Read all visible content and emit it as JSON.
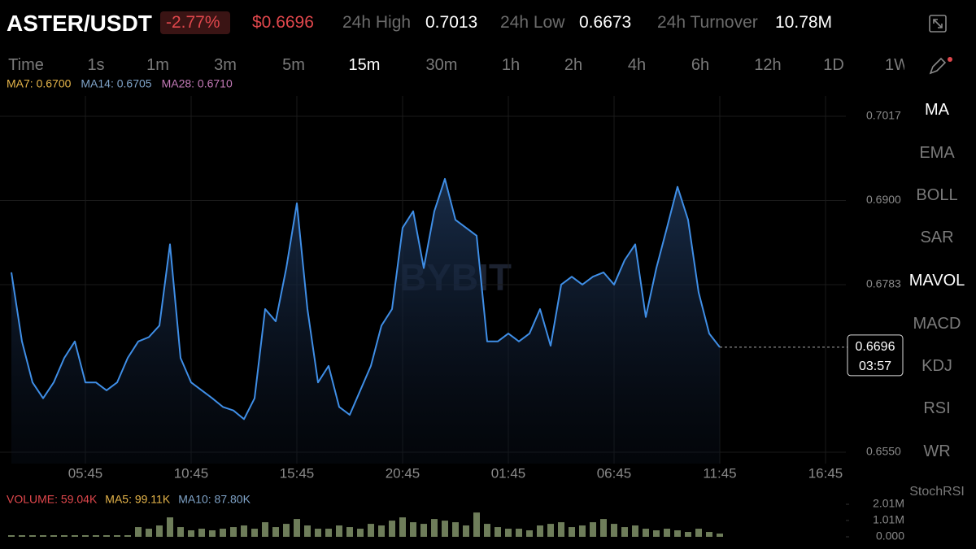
{
  "ui": {
    "symbol": "ASTER/USDT",
    "change": "-2.77%",
    "price": "$0.6696",
    "stats": [
      {
        "label": "24h High",
        "value": "0.7013"
      },
      {
        "label": "24h Low",
        "value": "0.6673"
      },
      {
        "label": "24h Turnover",
        "value": "10.78M"
      }
    ],
    "intervals": [
      "Time",
      "1s",
      "1m",
      "3m",
      "5m",
      "15m",
      "30m",
      "1h",
      "2h",
      "4h",
      "6h",
      "12h",
      "1D",
      "1W"
    ],
    "indicators": [
      "MA",
      "EMA",
      "BOLL",
      "SAR",
      "MAVOL",
      "MACD",
      "KDJ",
      "RSI",
      "WR",
      "StochRSI"
    ],
    "watermark": "BYBIT",
    "countdown": "03:57"
  },
  "chart_data": [
    {
      "type": "line",
      "indicator_labels": [
        {
          "text": "MA7: 0.6700",
          "color": "#e6b54a"
        },
        {
          "text": "MA14: 0.6705",
          "color": "#7fa3c8"
        },
        {
          "text": "MA28: 0.6710",
          "color": "#c47ab8"
        }
      ],
      "categories": [
        null,
        null,
        null,
        null,
        null,
        null,
        null,
        "05:45",
        null,
        null,
        null,
        null,
        null,
        null,
        null,
        null,
        null,
        "10:45",
        null,
        null,
        null,
        null,
        null,
        null,
        null,
        null,
        null,
        "15:45",
        null,
        null,
        null,
        null,
        null,
        null,
        null,
        null,
        null,
        "20:45",
        null,
        null,
        null,
        null,
        null,
        null,
        null,
        null,
        null,
        "01:45",
        null,
        null,
        null,
        null,
        null,
        null,
        null,
        null,
        null,
        "06:45",
        null,
        null,
        null,
        null,
        null,
        null,
        null,
        null,
        null,
        "11:45",
        null,
        null,
        null,
        null,
        null,
        null,
        null,
        null,
        null,
        "16:45",
        null,
        null,
        null
      ],
      "series": [
        {
          "color": "#3f8ee6",
          "values": [
            0.68,
            0.6704,
            0.6647,
            0.6625,
            0.6647,
            0.6681,
            0.6704,
            0.6647,
            0.6647,
            0.6636,
            0.6647,
            0.6681,
            0.6704,
            0.671,
            0.6726,
            0.6839,
            0.6681,
            0.6647,
            0.6636,
            0.6625,
            0.6613,
            0.6608,
            0.6596,
            0.6625,
            0.6749,
            0.6732,
            0.6806,
            0.6896,
            0.6749,
            0.6647,
            0.667,
            0.6613,
            0.6602,
            0.6636,
            0.667,
            0.6726,
            0.6749,
            0.6862,
            0.6885,
            0.6806,
            0.6885,
            0.693,
            0.6873,
            0.6862,
            0.6851,
            0.6704,
            0.6704,
            0.6715,
            0.6704,
            0.6715,
            0.6749,
            0.6698,
            0.6783,
            0.6794,
            0.6783,
            0.6794,
            0.68,
            0.6783,
            0.6817,
            0.6839,
            0.6738,
            0.6806,
            0.6862,
            0.6919,
            0.6873,
            0.6772,
            0.6715,
            0.6696,
            null,
            null,
            null,
            null,
            null,
            null,
            null,
            null,
            null,
            null,
            null,
            null,
            null
          ]
        }
      ],
      "ylim": [
        0.655,
        0.7017
      ],
      "yticks": [
        {
          "value": 0.7017,
          "label": "0.7017"
        },
        {
          "value": 0.69,
          "label": "0.6900"
        },
        {
          "value": 0.6783,
          "label": "0.6783"
        },
        {
          "value": 0.655,
          "label": "0.6550"
        }
      ],
      "grid": true
    },
    {
      "type": "bar",
      "indicator_labels": [
        {
          "text": "VOLUME: 59.04K",
          "color": "#e0474c"
        },
        {
          "text": "MA5: 99.11K",
          "color": "#e6b54a"
        },
        {
          "text": "MA10: 87.80K",
          "color": "#7fa3c8"
        }
      ],
      "color": "#6e7d5a",
      "values": [
        100000,
        100000,
        100000,
        100000,
        100000,
        100000,
        100000,
        100000,
        100000,
        100000,
        100000,
        100000,
        600000,
        500000,
        700000,
        1200000,
        600000,
        400000,
        500000,
        400000,
        500000,
        600000,
        700000,
        500000,
        900000,
        600000,
        800000,
        1100000,
        700000,
        500000,
        500000,
        700000,
        600000,
        500000,
        800000,
        700000,
        1000000,
        1200000,
        900000,
        800000,
        1100000,
        1000000,
        900000,
        700000,
        1500000,
        800000,
        600000,
        500000,
        500000,
        400000,
        700000,
        800000,
        900000,
        600000,
        700000,
        900000,
        1100000,
        800000,
        600000,
        700000,
        500000,
        400000,
        500000,
        400000,
        300000,
        500000,
        300000,
        200000
      ],
      "ylim": [
        0,
        2010000
      ],
      "yticks": [
        {
          "value": 2010000,
          "label": "2.01M"
        },
        {
          "value": 1010000,
          "label": "1.01M"
        },
        {
          "value": 0,
          "label": "0.000"
        }
      ]
    }
  ]
}
